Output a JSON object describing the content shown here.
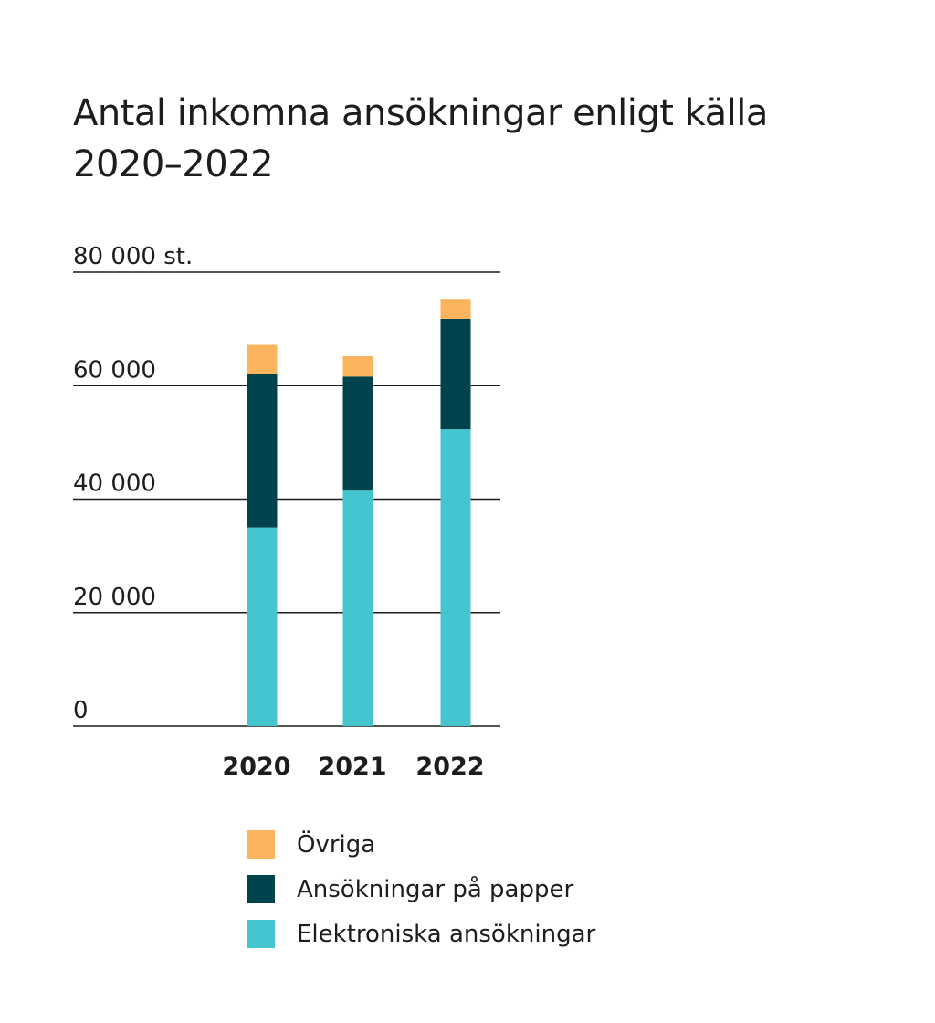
{
  "title": {
    "line1": "Antal inkomna ansökningar enligt källa",
    "line2": "2020–2022"
  },
  "colors": {
    "Elektroniska ansökningar": "#43c4cf",
    "Ansökningar på papper": "#02424d",
    "Övriga": "#fbb35d",
    "gridline": "#1d1d1b"
  },
  "chart_data": {
    "type": "bar",
    "stacked": true,
    "title": "Antal inkomna ansökningar enligt källa 2020–2022",
    "categories": [
      "2020",
      "2021",
      "2022"
    ],
    "series": [
      {
        "name": "Elektroniska ansökningar",
        "values": [
          35000,
          41500,
          52300
        ]
      },
      {
        "name": "Ansökningar på papper",
        "values": [
          27000,
          20100,
          19500
        ]
      },
      {
        "name": "Övriga",
        "values": [
          5200,
          3600,
          3500
        ]
      }
    ],
    "ylim": [
      0,
      80000
    ],
    "yticks": [
      0,
      20000,
      40000,
      60000,
      80000
    ],
    "ytick_labels": [
      "0",
      "20 000",
      "40 000",
      "60 000",
      "80 000 st."
    ],
    "grid": true,
    "legend": "bottom",
    "legend_order": [
      "Övriga",
      "Ansökningar på papper",
      "Elektroniska ansökningar"
    ]
  }
}
